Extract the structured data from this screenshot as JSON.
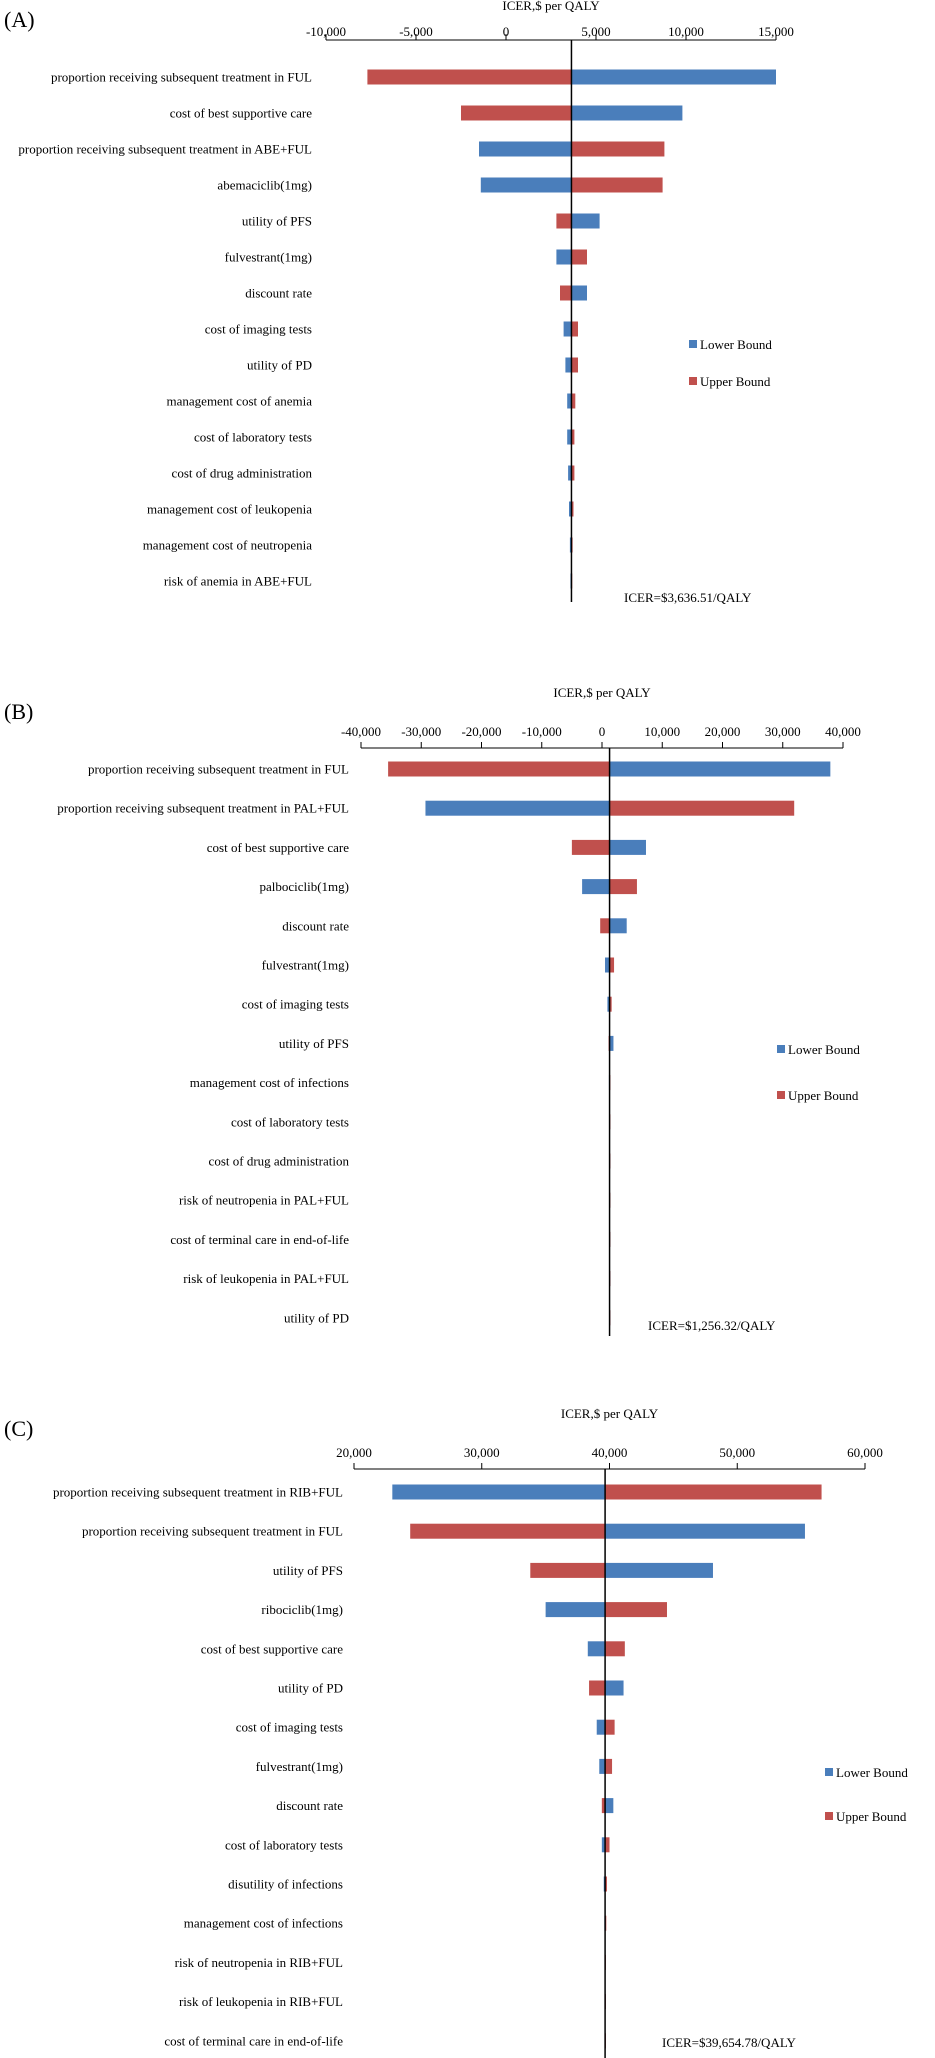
{
  "colors": {
    "lower": "#4a7ebb",
    "upper": "#c0504d",
    "axis": "#000000"
  },
  "chart_data": [
    {
      "panel_label": "(A)",
      "type": "bar",
      "orientation": "horizontal",
      "chart_kind": "tornado",
      "title": "ICER,$ per QALY",
      "xlabel": "ICER,$ per QALY",
      "xlim": [
        -10000,
        15000
      ],
      "ticks": [
        -10000,
        -5000,
        0,
        5000,
        10000,
        15000
      ],
      "tick_labels": [
        "-10,000",
        "-5,000",
        "0",
        "5,000",
        "10,000",
        "15,000"
      ],
      "base": 3636.51,
      "base_label": "ICER=$3,636.51/QALY",
      "legend": [
        "Lower Bound",
        "Upper Bound"
      ],
      "legend_position": "right",
      "categories": [
        "proportion receiving subsequent treatment in FUL",
        "cost of best supportive care",
        "proportion receiving subsequent treatment in ABE+FUL",
        "abemaciclib(1mg)",
        "utility of PFS",
        "fulvestrant(1mg)",
        "discount rate",
        "cost of imaging tests",
        "utility of PD",
        "management cost of anemia",
        "cost of laboratory tests",
        "cost of drug administration",
        "management cost of leukopenia",
        "management cost of neutropenia",
        "risk of anemia in ABE+FUL"
      ],
      "series": [
        {
          "name": "Lower Bound",
          "values": [
            15000,
            9800,
            -1500,
            -1400,
            5200,
            2800,
            4500,
            3200,
            3300,
            3400,
            3400,
            3450,
            3500,
            3550,
            3580
          ]
        },
        {
          "name": "Upper Bound",
          "values": [
            -7700,
            -2500,
            8800,
            8700,
            2800,
            4500,
            3000,
            4000,
            4000,
            3850,
            3800,
            3800,
            3750,
            3700,
            3680
          ]
        }
      ]
    },
    {
      "panel_label": "(B)",
      "type": "bar",
      "orientation": "horizontal",
      "chart_kind": "tornado",
      "title": "ICER,$ per QALY",
      "xlabel": "ICER,$ per QALY",
      "xlim": [
        -40000,
        40000
      ],
      "ticks": [
        -40000,
        -30000,
        -20000,
        -10000,
        0,
        10000,
        20000,
        30000,
        40000
      ],
      "tick_labels": [
        "-40,000",
        "-30,000",
        "-20,000",
        "-10,000",
        "0",
        "10,000",
        "20,000",
        "30,000",
        "40,000"
      ],
      "base": 1256.32,
      "base_label": "ICER=$1,256.32/QALY",
      "legend": [
        "Lower Bound",
        "Upper Bound"
      ],
      "legend_position": "right",
      "categories": [
        "proportion receiving subsequent treatment in FUL",
        "proportion receiving subsequent treatment in PAL+FUL",
        "cost of best supportive care",
        "palbociclib(1mg)",
        "discount rate",
        "fulvestrant(1mg)",
        "cost of imaging tests",
        "utility of PFS",
        "management cost of infections",
        "cost of laboratory tests",
        "cost of drug administration",
        "risk of neutropenia in PAL+FUL",
        "cost of terminal care in end-of-life",
        "risk of leukopenia in PAL+FUL",
        "utility of PD"
      ],
      "series": [
        {
          "name": "Lower Bound",
          "values": [
            37900,
            -29300,
            7300,
            -3300,
            4100,
            500,
            900,
            1900,
            1150,
            1200,
            1220,
            1230,
            1240,
            1245,
            1250
          ]
        },
        {
          "name": "Upper Bound",
          "values": [
            -35500,
            31900,
            -5000,
            5800,
            -300,
            2000,
            1600,
            1100,
            1350,
            1300,
            1290,
            1280,
            1270,
            1265,
            1260
          ]
        }
      ]
    },
    {
      "panel_label": "(C)",
      "type": "bar",
      "orientation": "horizontal",
      "chart_kind": "tornado",
      "title": "ICER,$ per QALY",
      "xlabel": "ICER,$ per QALY",
      "xlim": [
        20000,
        60000
      ],
      "ticks": [
        20000,
        30000,
        40000,
        50000,
        60000
      ],
      "tick_labels": [
        "20,000",
        "30,000",
        "40,000",
        "50,000",
        "60,000"
      ],
      "base": 39654.78,
      "base_label": "ICER=$39,654.78/QALY",
      "legend": [
        "Lower Bound",
        "Upper Bound"
      ],
      "legend_position": "right",
      "categories": [
        "proportion receiving subsequent treatment in RIB+FUL",
        "proportion receiving subsequent treatment in FUL",
        "utility of PFS",
        "ribociclib(1mg)",
        "cost of best supportive care",
        "utility of PD",
        "cost of imaging tests",
        "fulvestrant(1mg)",
        "discount rate",
        "cost of laboratory tests",
        "disutility of infections",
        "management cost of infections",
        "risk of neutropenia in RIB+FUL",
        "risk of leukopenia in RIB+FUL",
        "cost of terminal care in end-of-life"
      ],
      "series": [
        {
          "name": "Lower Bound",
          "values": [
            23000,
            55300,
            48100,
            35000,
            38300,
            41100,
            39000,
            39200,
            40300,
            39400,
            39550,
            39600,
            39630,
            39640,
            39645
          ]
        },
        {
          "name": "Upper Bound",
          "values": [
            56600,
            24400,
            33800,
            44500,
            41200,
            38400,
            40400,
            40200,
            39400,
            40000,
            39800,
            39750,
            39700,
            39680,
            39670
          ]
        }
      ]
    }
  ]
}
